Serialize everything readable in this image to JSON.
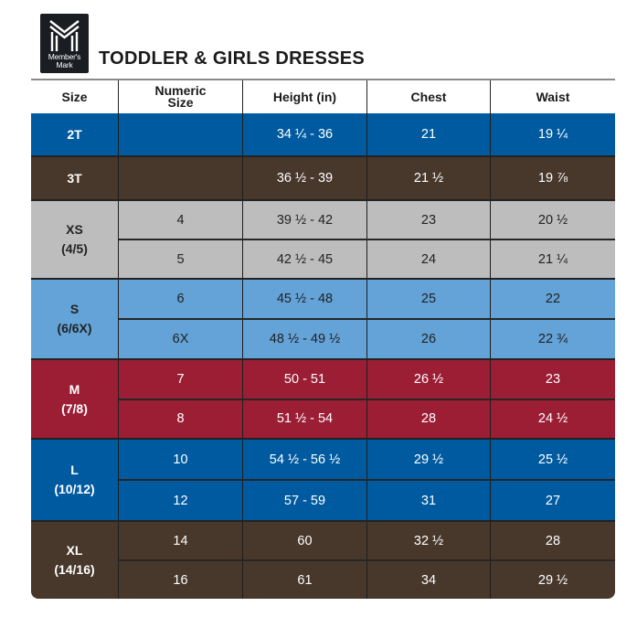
{
  "brand": {
    "logo_icon": "members-mark-m-icon",
    "name_line1": "Member's",
    "name_line2": "Mark"
  },
  "title": "TODDLER & GIRLS DRESSES",
  "table": {
    "headers": [
      "Size",
      "Numeric Size",
      "Height (in)",
      "Chest",
      "Waist"
    ],
    "sections": [
      {
        "size": "2T",
        "size_sub": "",
        "color": "#005aa0",
        "text": "light",
        "rows": [
          {
            "numeric": "",
            "height": "34 ¼ - 36",
            "chest": "21",
            "waist": "19 ¼"
          }
        ]
      },
      {
        "size": "3T",
        "size_sub": "",
        "color": "#48372b",
        "text": "light",
        "rows": [
          {
            "numeric": "",
            "height": "36 ½ - 39",
            "chest": "21 ½",
            "waist": "19 ⅞"
          }
        ]
      },
      {
        "size": "XS",
        "size_sub": "(4/5)",
        "color": "#bdbdbd",
        "text": "dark",
        "rows": [
          {
            "numeric": "4",
            "height": "39 ½ - 42",
            "chest": "23",
            "waist": "20 ½"
          },
          {
            "numeric": "5",
            "height": "42 ½ - 45",
            "chest": "24",
            "waist": "21 ¼"
          }
        ]
      },
      {
        "size": "S",
        "size_sub": "(6/6X)",
        "color": "#64a3d8",
        "text": "dark",
        "rows": [
          {
            "numeric": "6",
            "height": "45 ½ - 48",
            "chest": "25",
            "waist": "22"
          },
          {
            "numeric": "6X",
            "height": "48 ½ - 49 ½",
            "chest": "26",
            "waist": "22 ¾"
          }
        ]
      },
      {
        "size": "M",
        "size_sub": "(7/8)",
        "color": "#9b1e35",
        "text": "light",
        "rows": [
          {
            "numeric": "7",
            "height": "50 - 51",
            "chest": "26 ½",
            "waist": "23"
          },
          {
            "numeric": "8",
            "height": "51 ½ - 54",
            "chest": "28",
            "waist": "24 ½"
          }
        ]
      },
      {
        "size": "L",
        "size_sub": "(10/12)",
        "color": "#005aa0",
        "text": "light",
        "rows": [
          {
            "numeric": "10",
            "height": "54 ½ - 56 ½",
            "chest": "29 ½",
            "waist": "25 ½"
          },
          {
            "numeric": "12",
            "height": "57 - 59",
            "chest": "31",
            "waist": "27"
          }
        ]
      },
      {
        "size": "XL",
        "size_sub": "(14/16)",
        "color": "#48372b",
        "text": "light",
        "rows": [
          {
            "numeric": "14",
            "height": "60",
            "chest": "32 ½",
            "waist": "28"
          },
          {
            "numeric": "16",
            "height": "61",
            "chest": "34",
            "waist": "29 ½"
          }
        ]
      }
    ]
  }
}
